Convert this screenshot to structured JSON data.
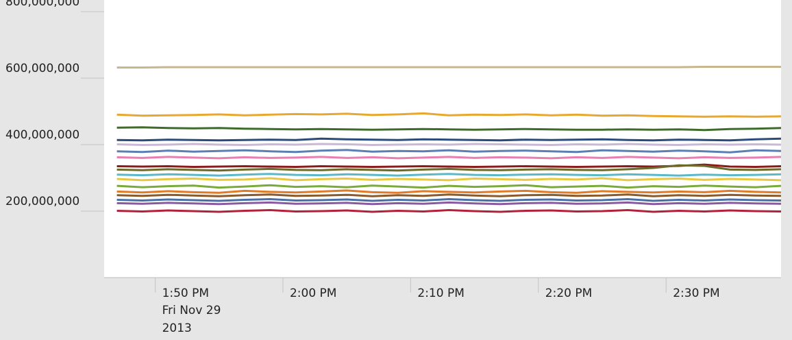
{
  "chart_data": {
    "type": "line",
    "x": [
      "2013-11-29T13:47",
      "2013-11-29T13:49",
      "2013-11-29T13:51",
      "2013-11-29T13:53",
      "2013-11-29T13:55",
      "2013-11-29T13:57",
      "2013-11-29T13:59",
      "2013-11-29T14:01",
      "2013-11-29T14:03",
      "2013-11-29T14:05",
      "2013-11-29T14:07",
      "2013-11-29T14:09",
      "2013-11-29T14:11",
      "2013-11-29T14:13",
      "2013-11-29T14:15",
      "2013-11-29T14:17",
      "2013-11-29T14:19",
      "2013-11-29T14:21",
      "2013-11-29T14:23",
      "2013-11-29T14:25",
      "2013-11-29T14:27",
      "2013-11-29T14:29",
      "2013-11-29T14:31",
      "2013-11-29T14:33",
      "2013-11-29T14:35",
      "2013-11-29T14:37",
      "2013-11-29T14:39"
    ],
    "xlim": [
      "2013-11-29T13:46",
      "2013-11-29T14:39"
    ],
    "xticks": [
      {
        "value": "2013-11-29T13:50",
        "label": "1:50 PM"
      },
      {
        "value": "2013-11-29T14:00",
        "label": "2:00 PM"
      },
      {
        "value": "2013-11-29T14:10",
        "label": "2:10 PM"
      },
      {
        "value": "2013-11-29T14:20",
        "label": "2:20 PM"
      },
      {
        "value": "2013-11-29T14:30",
        "label": "2:30 PM"
      }
    ],
    "x_date_lines": [
      "Fri Nov 29",
      "2013"
    ],
    "ylim": [
      0,
      800000000
    ],
    "yticks": [
      {
        "value": 200000000,
        "label": "200,000,000"
      },
      {
        "value": 400000000,
        "label": "400,000,000"
      },
      {
        "value": 600000000,
        "label": "600,000,000"
      },
      {
        "value": 800000000,
        "label": "800,000,000"
      }
    ],
    "series": [
      {
        "color": "#c8b78e",
        "values": [
          632000000.0,
          632000000.0,
          633000000.0,
          633000000.0,
          633000000.0,
          633000000.0,
          633000000.0,
          633000000.0,
          633000000.0,
          633000000.0,
          633000000.0,
          633000000.0,
          633000000.0,
          633000000.0,
          633000000.0,
          633000000.0,
          633000000.0,
          633000000.0,
          633000000.0,
          633000000.0,
          633000000.0,
          633000000.0,
          633000000.0,
          634000000.0,
          634000000.0,
          634000000.0,
          634000000.0
        ]
      },
      {
        "color": "#e8a830",
        "values": [
          490000000.0,
          487000000.0,
          488000000.0,
          489000000.0,
          491000000.0,
          488000000.0,
          490000000.0,
          492000000.0,
          491000000.0,
          493000000.0,
          489000000.0,
          491000000.0,
          494000000.0,
          488000000.0,
          490000000.0,
          489000000.0,
          491000000.0,
          488000000.0,
          490000000.0,
          487000000.0,
          488000000.0,
          486000000.0,
          485000000.0,
          484000000.0,
          485000000.0,
          484000000.0,
          485000000.0
        ]
      },
      {
        "color": "#3f6b2a",
        "values": [
          451000000.0,
          452000000.0,
          450000000.0,
          449000000.0,
          450000000.0,
          448000000.0,
          447000000.0,
          446000000.0,
          447000000.0,
          446000000.0,
          445000000.0,
          446000000.0,
          447000000.0,
          446000000.0,
          445000000.0,
          446000000.0,
          447000000.0,
          446000000.0,
          445000000.0,
          445000000.0,
          446000000.0,
          445000000.0,
          446000000.0,
          444000000.0,
          447000000.0,
          448000000.0,
          450000000.0
        ]
      },
      {
        "color": "#2d4a7a",
        "values": [
          414000000.0,
          413000000.0,
          415000000.0,
          414000000.0,
          413000000.0,
          414000000.0,
          415000000.0,
          414000000.0,
          418000000.0,
          416000000.0,
          415000000.0,
          414000000.0,
          416000000.0,
          415000000.0,
          414000000.0,
          413000000.0,
          415000000.0,
          414000000.0,
          415000000.0,
          416000000.0,
          414000000.0,
          413000000.0,
          415000000.0,
          414000000.0,
          413000000.0,
          416000000.0,
          418000000.0
        ]
      },
      {
        "color": "#c9b9d6",
        "values": [
          401000000.0,
          399000000.0,
          400000000.0,
          402000000.0,
          400000000.0,
          399000000.0,
          401000000.0,
          400000000.0,
          402000000.0,
          401000000.0,
          399000000.0,
          400000000.0,
          401000000.0,
          400000000.0,
          402000000.0,
          401000000.0,
          400000000.0,
          399000000.0,
          401000000.0,
          400000000.0,
          402000000.0,
          400000000.0,
          399000000.0,
          401000000.0,
          400000000.0,
          401000000.0,
          400000000.0
        ]
      },
      {
        "color": "#5b7fb5",
        "values": [
          380000000.0,
          378000000.0,
          382000000.0,
          379000000.0,
          381000000.0,
          383000000.0,
          380000000.0,
          378000000.0,
          382000000.0,
          384000000.0,
          379000000.0,
          381000000.0,
          380000000.0,
          383000000.0,
          379000000.0,
          381000000.0,
          382000000.0,
          380000000.0,
          378000000.0,
          383000000.0,
          381000000.0,
          379000000.0,
          382000000.0,
          380000000.0,
          377000000.0,
          383000000.0,
          381000000.0
        ]
      },
      {
        "color": "#e77fb3",
        "values": [
          362000000.0,
          360000000.0,
          363000000.0,
          361000000.0,
          359000000.0,
          362000000.0,
          360000000.0,
          361000000.0,
          363000000.0,
          360000000.0,
          362000000.0,
          359000000.0,
          361000000.0,
          363000000.0,
          360000000.0,
          362000000.0,
          361000000.0,
          359000000.0,
          362000000.0,
          360000000.0,
          363000000.0,
          361000000.0,
          359000000.0,
          362000000.0,
          360000000.0,
          361000000.0,
          363000000.0
        ]
      },
      {
        "color": "#8b1a1a",
        "values": [
          335000000.0,
          334000000.0,
          335000000.0,
          333000000.0,
          334000000.0,
          335000000.0,
          334000000.0,
          333000000.0,
          335000000.0,
          334000000.0,
          333000000.0,
          334000000.0,
          335000000.0,
          334000000.0,
          333000000.0,
          334000000.0,
          335000000.0,
          334000000.0,
          333000000.0,
          334000000.0,
          335000000.0,
          334000000.0,
          336000000.0,
          340000000.0,
          334000000.0,
          333000000.0,
          335000000.0
        ]
      },
      {
        "color": "#6b6b2a",
        "values": [
          325000000.0,
          323000000.0,
          326000000.0,
          324000000.0,
          322000000.0,
          325000000.0,
          327000000.0,
          324000000.0,
          323000000.0,
          326000000.0,
          324000000.0,
          322000000.0,
          325000000.0,
          327000000.0,
          324000000.0,
          323000000.0,
          325000000.0,
          326000000.0,
          324000000.0,
          323000000.0,
          326000000.0,
          330000000.0,
          338000000.0,
          336000000.0,
          325000000.0,
          324000000.0,
          326000000.0
        ]
      },
      {
        "color": "#5bb8c9",
        "values": [
          310000000.0,
          308000000.0,
          311000000.0,
          309000000.0,
          307000000.0,
          310000000.0,
          312000000.0,
          309000000.0,
          308000000.0,
          311000000.0,
          309000000.0,
          307000000.0,
          310000000.0,
          312000000.0,
          309000000.0,
          308000000.0,
          310000000.0,
          311000000.0,
          309000000.0,
          308000000.0,
          311000000.0,
          309000000.0,
          307000000.0,
          310000000.0,
          308000000.0,
          309000000.0,
          311000000.0
        ]
      },
      {
        "color": "#e8c840",
        "values": [
          297000000.0,
          293000000.0,
          296000000.0,
          298000000.0,
          294000000.0,
          295000000.0,
          299000000.0,
          293000000.0,
          296000000.0,
          298000000.0,
          294000000.0,
          297000000.0,
          295000000.0,
          293000000.0,
          298000000.0,
          296000000.0,
          294000000.0,
          297000000.0,
          295000000.0,
          299000000.0,
          293000000.0,
          296000000.0,
          298000000.0,
          294000000.0,
          297000000.0,
          295000000.0,
          293000000.0
        ]
      },
      {
        "color": "#7aaa3a",
        "values": [
          276000000.0,
          272000000.0,
          275000000.0,
          277000000.0,
          271000000.0,
          274000000.0,
          278000000.0,
          273000000.0,
          275000000.0,
          272000000.0,
          277000000.0,
          274000000.0,
          271000000.0,
          276000000.0,
          273000000.0,
          275000000.0,
          278000000.0,
          272000000.0,
          274000000.0,
          276000000.0,
          271000000.0,
          275000000.0,
          273000000.0,
          277000000.0,
          274000000.0,
          272000000.0,
          276000000.0
        ]
      },
      {
        "color": "#e07b28",
        "values": [
          259000000.0,
          256000000.0,
          260000000.0,
          257000000.0,
          255000000.0,
          261000000.0,
          258000000.0,
          256000000.0,
          259000000.0,
          262000000.0,
          257000000.0,
          255000000.0,
          260000000.0,
          258000000.0,
          256000000.0,
          259000000.0,
          261000000.0,
          257000000.0,
          255000000.0,
          260000000.0,
          258000000.0,
          256000000.0,
          259000000.0,
          257000000.0,
          261000000.0,
          258000000.0,
          256000000.0
        ]
      },
      {
        "color": "#8b5a2b",
        "values": [
          248000000.0,
          246000000.0,
          249000000.0,
          247000000.0,
          245000000.0,
          248000000.0,
          250000000.0,
          246000000.0,
          247000000.0,
          249000000.0,
          245000000.0,
          248000000.0,
          246000000.0,
          250000000.0,
          247000000.0,
          245000000.0,
          248000000.0,
          249000000.0,
          246000000.0,
          247000000.0,
          250000000.0,
          245000000.0,
          248000000.0,
          246000000.0,
          249000000.0,
          247000000.0,
          246000000.0
        ]
      },
      {
        "color": "#4a6fa5",
        "values": [
          234000000.0,
          232000000.0,
          235000000.0,
          233000000.0,
          231000000.0,
          234000000.0,
          236000000.0,
          232000000.0,
          233000000.0,
          235000000.0,
          231000000.0,
          234000000.0,
          232000000.0,
          236000000.0,
          233000000.0,
          231000000.0,
          234000000.0,
          235000000.0,
          232000000.0,
          233000000.0,
          236000000.0,
          231000000.0,
          234000000.0,
          232000000.0,
          235000000.0,
          233000000.0,
          232000000.0
        ]
      },
      {
        "color": "#8a5aa0",
        "values": [
          224000000.0,
          222000000.0,
          225000000.0,
          223000000.0,
          221000000.0,
          224000000.0,
          226000000.0,
          222000000.0,
          223000000.0,
          225000000.0,
          221000000.0,
          224000000.0,
          222000000.0,
          226000000.0,
          223000000.0,
          221000000.0,
          224000000.0,
          225000000.0,
          222000000.0,
          223000000.0,
          226000000.0,
          221000000.0,
          224000000.0,
          222000000.0,
          225000000.0,
          223000000.0,
          222000000.0
        ]
      },
      {
        "color": "#b3203a",
        "values": [
          201000000.0,
          199000000.0,
          202000000.0,
          200000000.0,
          198000000.0,
          201000000.0,
          203000000.0,
          199000000.0,
          200000000.0,
          202000000.0,
          198000000.0,
          201000000.0,
          199000000.0,
          203000000.0,
          200000000.0,
          198000000.0,
          201000000.0,
          202000000.0,
          199000000.0,
          200000000.0,
          203000000.0,
          198000000.0,
          201000000.0,
          199000000.0,
          202000000.0,
          200000000.0,
          199000000.0
        ]
      }
    ]
  }
}
